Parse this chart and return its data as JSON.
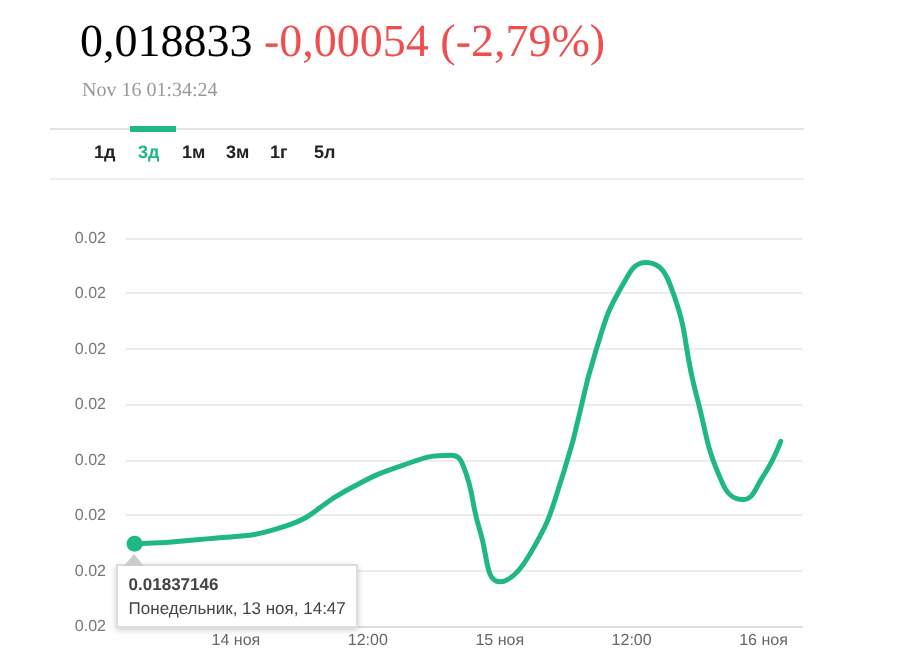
{
  "chart_data": {
    "type": "line",
    "title": "0,018833",
    "subtitle": "-0,00054 (-2,79%)",
    "annotations": [
      "Nov 16 01:34:24",
      "1д",
      "3д",
      "1м",
      "3м",
      "1г",
      "5л",
      {
        "text": "0.01837146",
        "x": "--11-13T14:47",
        "y": 0.01837146
      },
      "Понедельник, 13 ноя, 14:47"
    ],
    "x": [
      "--11-13T14:47",
      "--11-13T20:42",
      "--11-14T04:30",
      "--11-14T10:00",
      "--11-14T14:54",
      "--11-14T19:30",
      "--11-14T20:42",
      "--11-14T22:12",
      "--11-15T00:00",
      "--11-15T02:42",
      "--11-15T05:48",
      "--11-15T08:48",
      "--11-15T11:12",
      "--11-15T13:18",
      "--11-15T15:30",
      "--11-15T17:54",
      "--11-15T20:18",
      "--11-15T22:06",
      "--11-15T23:54",
      "--11-16T01:34"
    ],
    "series": [
      {
        "color": "#1fb884",
        "values": [
          0.01837146,
          0.01839,
          0.01845,
          0.01861,
          0.01872,
          0.01877,
          0.01872,
          0.01843,
          0.0182,
          0.01832,
          0.01869,
          0.01925,
          0.01954,
          0.01964,
          0.01954,
          0.01904,
          0.01864,
          0.01857,
          0.01867,
          0.018833
        ]
      }
    ],
    "xlim": [
      "--11-13T14:00",
      "--11-16T03:30"
    ],
    "xticks": [
      {
        "value": "--11-14",
        "label": "14 ноя"
      },
      {
        "value": "--11-14T12:00",
        "label": "12:00"
      },
      {
        "value": "--11-15",
        "label": "15 ноя"
      },
      {
        "value": "--11-15T12:00",
        "label": "12:00"
      },
      {
        "value": "--11-16",
        "label": "16 ноя"
      }
    ],
    "ylim": [
      0.018,
      0.01975
    ],
    "yticks": [
      {
        "value": 0.018,
        "label": "0.02"
      },
      {
        "value": 0.01825,
        "label": "0.02"
      },
      {
        "value": 0.0185,
        "label": "0.02"
      },
      {
        "value": 0.01875,
        "label": "0.02"
      },
      {
        "value": 0.019,
        "label": "0.02"
      },
      {
        "value": 0.01925,
        "label": "0.02"
      },
      {
        "value": 0.0195,
        "label": "0.02"
      },
      {
        "value": 0.01975,
        "label": "0.02"
      }
    ],
    "grid": "y",
    "marker": "none",
    "line_style": "solid"
  }
}
